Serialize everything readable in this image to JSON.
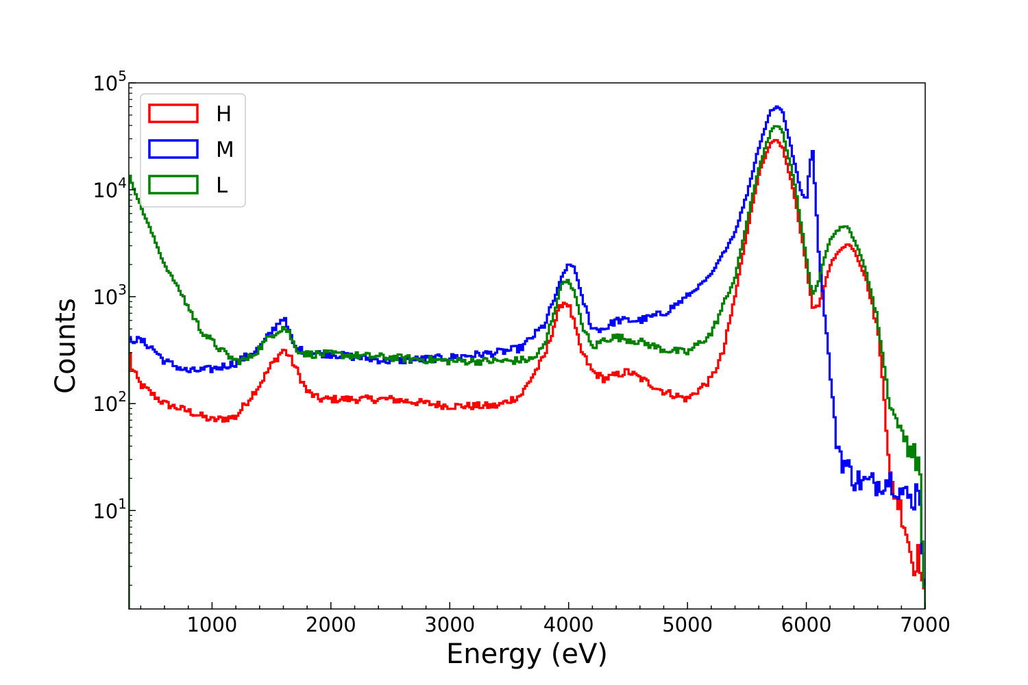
{
  "chart_data": {
    "type": "line",
    "step": true,
    "title": "",
    "xlabel": "Energy (eV)",
    "ylabel": "Counts",
    "xlim": [
      300,
      7000
    ],
    "ylim": [
      1.2,
      100000
    ],
    "yscale": "log",
    "xticks": [
      1000,
      2000,
      3000,
      4000,
      5000,
      6000,
      7000
    ],
    "xtick_labels": [
      "1000",
      "2000",
      "3000",
      "4000",
      "5000",
      "6000",
      "7000"
    ],
    "yticks": [
      {
        "value": 10,
        "base": "10",
        "exp": "1"
      },
      {
        "value": 100,
        "base": "10",
        "exp": "2"
      },
      {
        "value": 1000,
        "base": "10",
        "exp": "3"
      },
      {
        "value": 10000,
        "base": "10",
        "exp": "4"
      },
      {
        "value": 100000,
        "base": "10",
        "exp": "5"
      }
    ],
    "legend_position": "top-left",
    "grid": false,
    "series": [
      {
        "name": "H",
        "color": "#ff0000",
        "x": [
          300,
          320,
          400,
          600,
          800,
          1000,
          1200,
          1400,
          1500,
          1600,
          1650,
          1700,
          1800,
          1900,
          2000,
          2500,
          3000,
          3400,
          3600,
          3800,
          3900,
          3950,
          4000,
          4050,
          4100,
          4200,
          4300,
          4500,
          4700,
          4800,
          5000,
          5200,
          5300,
          5400,
          5500,
          5600,
          5700,
          5750,
          5800,
          5900,
          6000,
          6050,
          6100,
          6200,
          6300,
          6350,
          6400,
          6500,
          6600,
          6650,
          6700,
          6800,
          6850,
          6900,
          6950,
          7000
        ],
        "values": [
          350,
          220,
          150,
          100,
          85,
          70,
          75,
          150,
          230,
          320,
          280,
          220,
          130,
          110,
          110,
          110,
          95,
          95,
          120,
          280,
          650,
          900,
          850,
          550,
          320,
          200,
          170,
          200,
          150,
          130,
          110,
          170,
          300,
          1000,
          4000,
          14000,
          27000,
          29000,
          25000,
          9000,
          2000,
          800,
          750,
          2000,
          2900,
          3100,
          2800,
          1500,
          500,
          150,
          20,
          10,
          6,
          3,
          4,
          1.2
        ]
      },
      {
        "name": "M",
        "color": "#0000ff",
        "x": [
          300,
          400,
          500,
          600,
          800,
          1000,
          1200,
          1400,
          1500,
          1600,
          1650,
          1700,
          1800,
          2000,
          2500,
          3000,
          3400,
          3600,
          3800,
          3900,
          3950,
          4000,
          4050,
          4100,
          4200,
          4300,
          4400,
          4600,
          4800,
          5000,
          5200,
          5400,
          5500,
          5600,
          5700,
          5750,
          5800,
          5900,
          5950,
          6000,
          6050,
          6080,
          6100,
          6150,
          6200,
          6250,
          6300,
          6350,
          6400,
          6500,
          6600,
          6700,
          6800,
          6900,
          6950,
          7000
        ],
        "values": [
          400,
          390,
          330,
          250,
          200,
          210,
          240,
          330,
          470,
          650,
          460,
          330,
          300,
          290,
          250,
          270,
          300,
          330,
          550,
          1100,
          1600,
          2000,
          1900,
          1100,
          500,
          500,
          600,
          600,
          700,
          1000,
          1600,
          4000,
          9000,
          25000,
          55000,
          60000,
          55000,
          18000,
          10000,
          8000,
          27000,
          8000,
          3000,
          800,
          200,
          50,
          30,
          25,
          20,
          18,
          18,
          20,
          15,
          12,
          20,
          1.2
        ]
      },
      {
        "name": "L",
        "color": "#008000",
        "x": [
          300,
          400,
          500,
          600,
          700,
          800,
          900,
          1000,
          1100,
          1200,
          1300,
          1400,
          1500,
          1600,
          1650,
          1700,
          1800,
          2000,
          2500,
          3000,
          3500,
          3700,
          3800,
          3900,
          3950,
          4000,
          4050,
          4100,
          4200,
          4300,
          4400,
          4600,
          4800,
          5000,
          5200,
          5400,
          5500,
          5600,
          5700,
          5750,
          5800,
          5900,
          6000,
          6050,
          6100,
          6150,
          6200,
          6300,
          6350,
          6400,
          6500,
          6600,
          6650,
          6700,
          6800,
          6900,
          6950,
          7000
        ],
        "values": [
          14000,
          7000,
          3800,
          2000,
          1300,
          800,
          500,
          380,
          300,
          250,
          260,
          330,
          440,
          520,
          460,
          330,
          290,
          290,
          270,
          250,
          250,
          260,
          350,
          900,
          1400,
          1400,
          1100,
          600,
          330,
          400,
          420,
          380,
          320,
          300,
          450,
          1500,
          5000,
          16000,
          35000,
          40000,
          35000,
          12000,
          2300,
          1050,
          1300,
          2300,
          3500,
          4600,
          4400,
          3500,
          1800,
          600,
          250,
          100,
          55,
          35,
          28,
          1.2
        ]
      }
    ]
  }
}
